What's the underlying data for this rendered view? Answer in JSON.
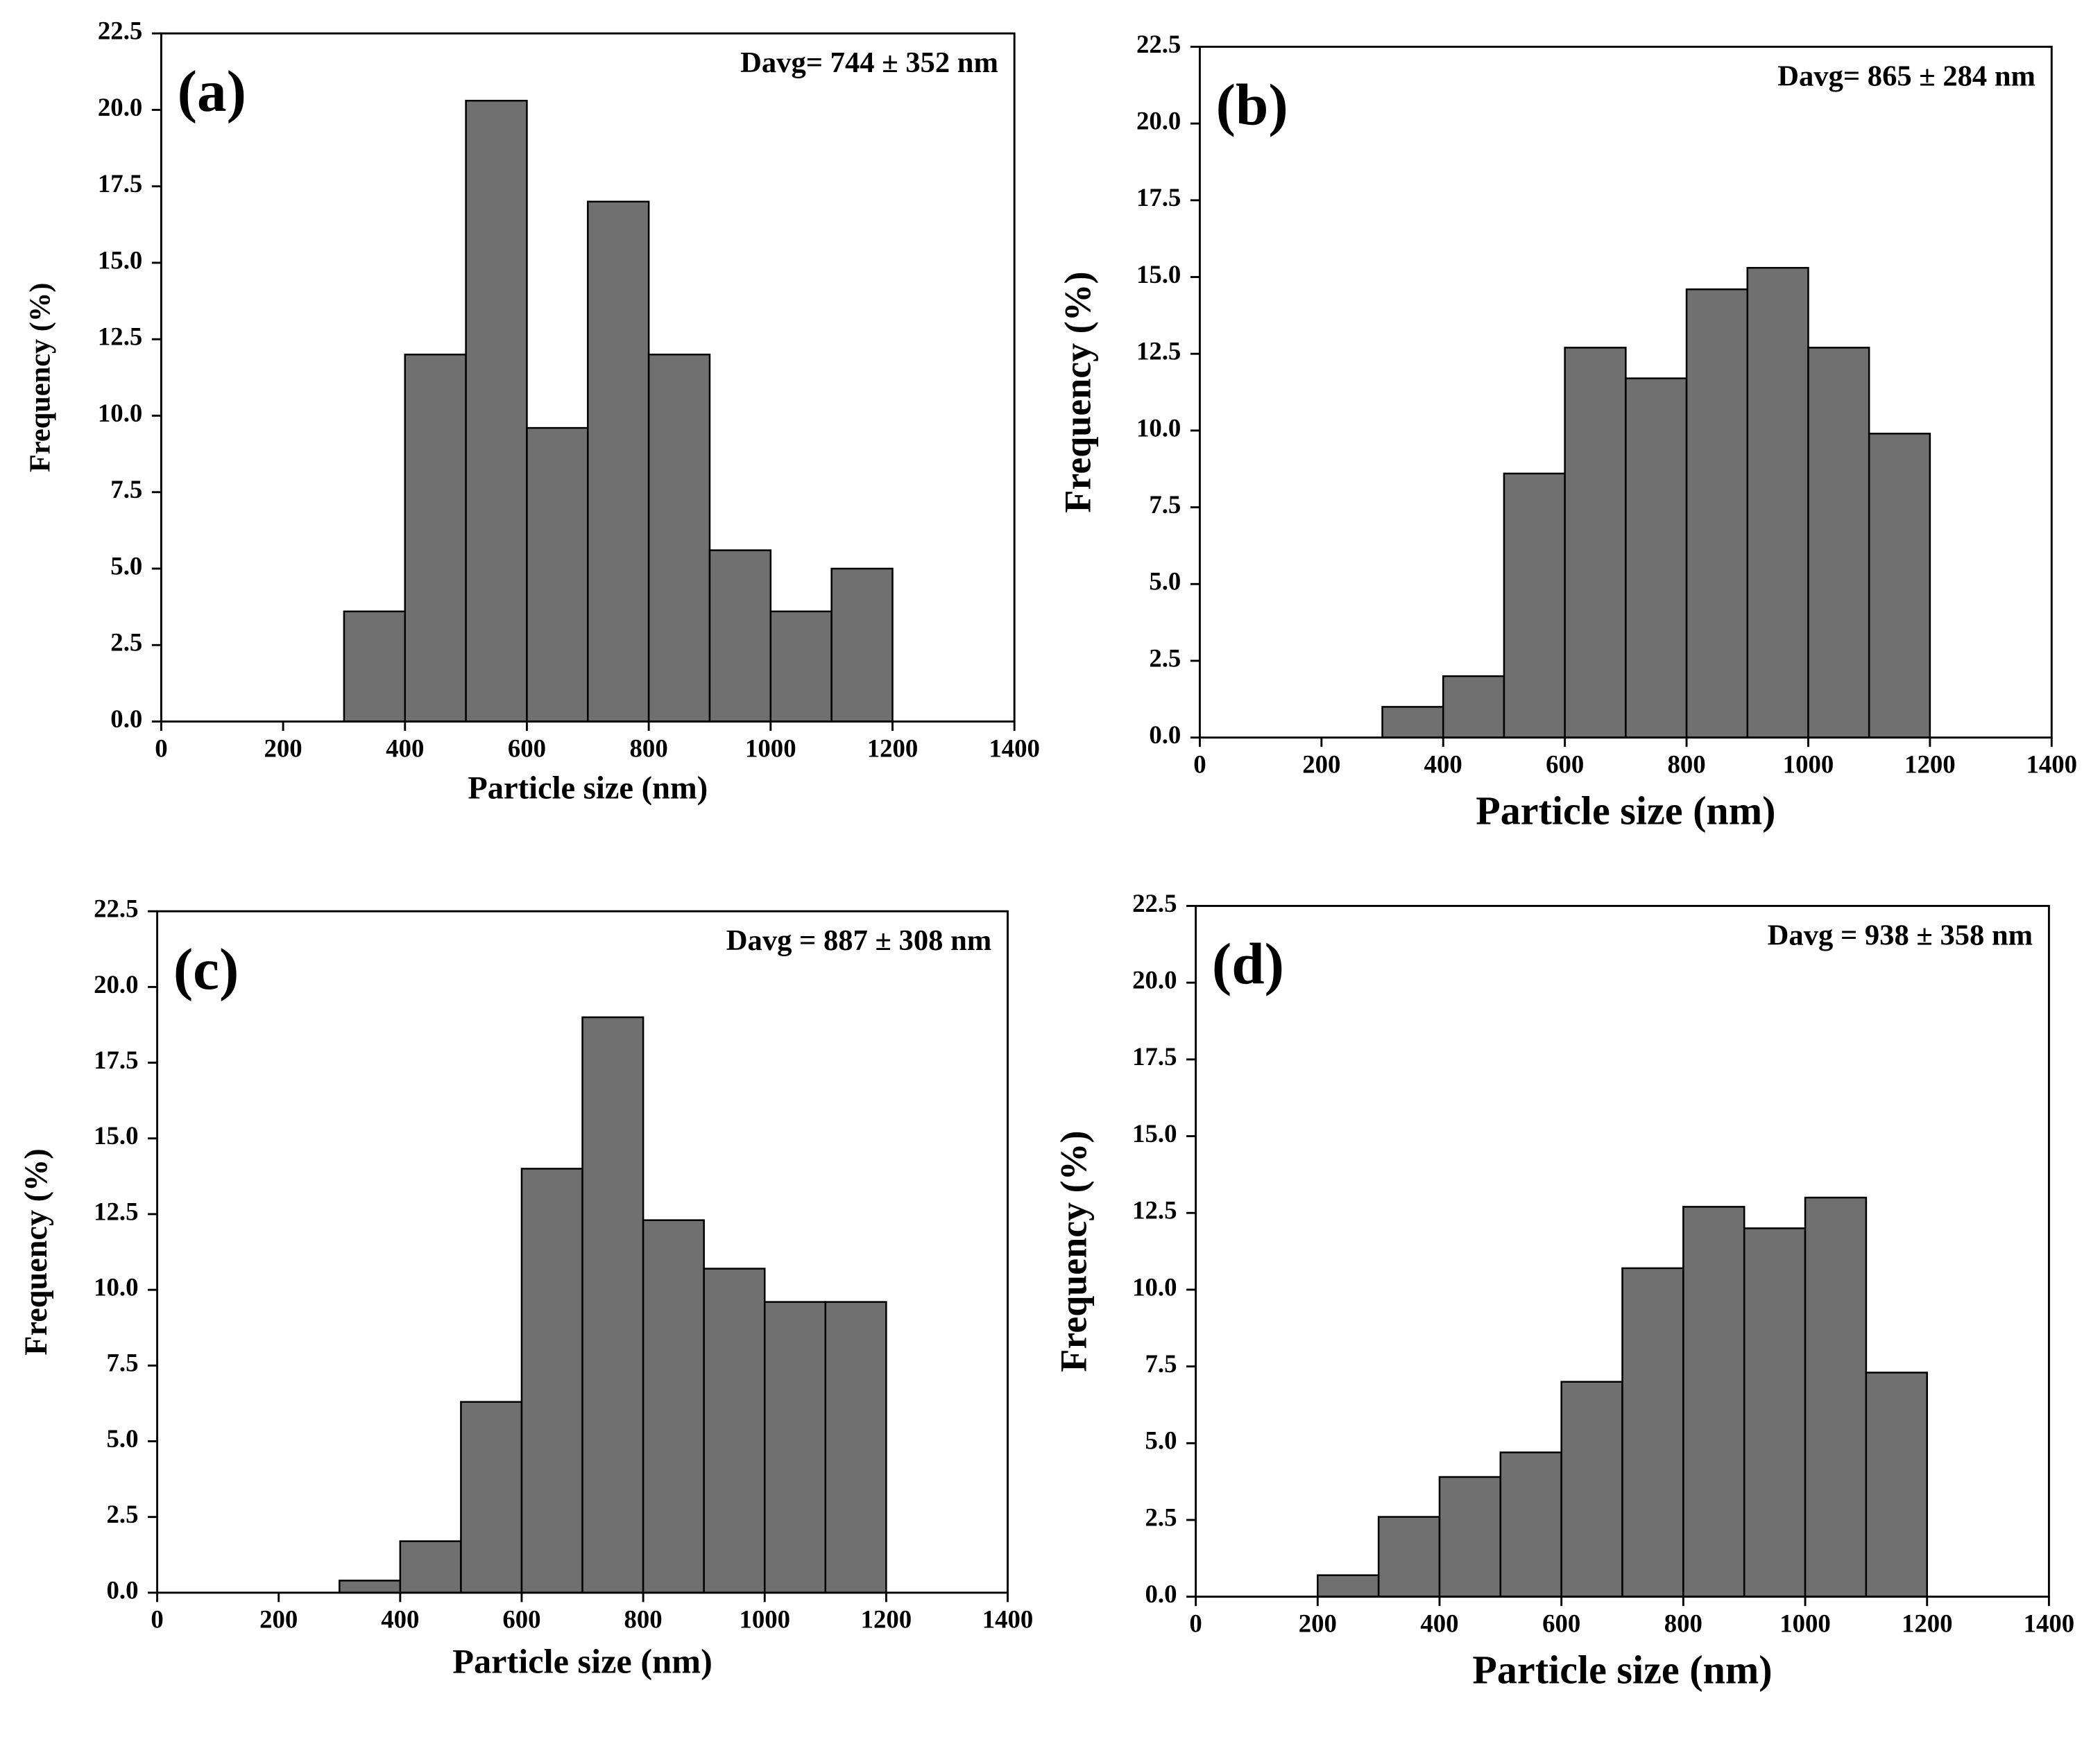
{
  "chart_data": [
    {
      "type": "histogram",
      "panel_label": "(a)",
      "annotation": "Davg= 744 ± 352 nm",
      "xlabel": "Particle size (nm)",
      "ylabel": "Frequency (%)",
      "bins": [
        300,
        400,
        500,
        600,
        700,
        800,
        900,
        1000,
        1100,
        1200
      ],
      "values": [
        3.6,
        12,
        20.3,
        9.6,
        17,
        12,
        5.6,
        3.6,
        5
      ],
      "color": "#707070",
      "xlim": [
        0,
        1400
      ],
      "xticks": [
        0,
        200,
        400,
        600,
        800,
        1000,
        1200,
        1400
      ],
      "ylim": [
        0,
        22.5
      ],
      "yticks": [
        {
          "value": 0,
          "label": "0.0"
        },
        2.5,
        {
          "value": 5,
          "label": "5.0"
        },
        7.5,
        {
          "value": 10,
          "label": "10.0"
        },
        12.5,
        {
          "value": 15,
          "label": "15.0"
        },
        17.5,
        {
          "value": 20,
          "label": "20.0"
        },
        22.5
      ]
    },
    {
      "type": "histogram",
      "panel_label": "(b)",
      "annotation": "Davg= 865 ± 284 nm",
      "xlabel": "Particle size (nm)",
      "ylabel": "Frequency (%)",
      "bins": [
        300,
        400,
        500,
        600,
        700,
        800,
        900,
        1000,
        1100,
        1200
      ],
      "values": [
        1,
        2,
        8.6,
        12.7,
        11.7,
        14.6,
        15.3,
        12.7,
        9.9
      ],
      "color": "#707070",
      "xlim": [
        0,
        1400
      ],
      "xticks": [
        0,
        200,
        400,
        600,
        800,
        1000,
        1200,
        1400
      ],
      "ylim": [
        0,
        22.5
      ],
      "yticks": [
        {
          "value": 0,
          "label": "0.0"
        },
        2.5,
        {
          "value": 5,
          "label": "5.0"
        },
        7.5,
        {
          "value": 10,
          "label": "10.0"
        },
        12.5,
        {
          "value": 15,
          "label": "15.0"
        },
        17.5,
        {
          "value": 20,
          "label": "20.0"
        },
        22.5
      ]
    },
    {
      "type": "histogram",
      "panel_label": "(c)",
      "annotation": "Davg = 887 ± 308 nm",
      "xlabel": "Particle size (nm)",
      "ylabel": "Frequency (%)",
      "bins": [
        300,
        400,
        500,
        600,
        700,
        800,
        900,
        1000,
        1100,
        1200
      ],
      "values": [
        0.4,
        1.7,
        6.3,
        14,
        19,
        12.3,
        10.7,
        9.6,
        9.6
      ],
      "color": "#707070",
      "xlim": [
        0,
        1400
      ],
      "xticks": [
        0,
        200,
        400,
        600,
        800,
        1000,
        1200,
        1400
      ],
      "ylim": [
        0,
        22.5
      ],
      "yticks": [
        {
          "value": 0,
          "label": "0.0"
        },
        2.5,
        {
          "value": 5,
          "label": "5.0"
        },
        7.5,
        {
          "value": 10,
          "label": "10.0"
        },
        12.5,
        {
          "value": 15,
          "label": "15.0"
        },
        17.5,
        {
          "value": 20,
          "label": "20.0"
        },
        22.5
      ]
    },
    {
      "type": "histogram",
      "panel_label": "(d)",
      "annotation": "Davg = 938 ± 358 nm",
      "xlabel": "Particle size (nm)",
      "ylabel": "Frequency (%)",
      "bins": [
        200,
        300,
        400,
        500,
        600,
        700,
        800,
        900,
        1000,
        1100,
        1200
      ],
      "values": [
        0.7,
        2.6,
        3.9,
        4.7,
        7,
        10.7,
        12.7,
        12,
        13,
        7.3
      ],
      "color": "#707070",
      "xlim": [
        0,
        1400
      ],
      "xticks": [
        0,
        200,
        400,
        600,
        800,
        1000,
        1200,
        1400
      ],
      "ylim": [
        0,
        22.5
      ],
      "yticks": [
        {
          "value": 0,
          "label": "0.0"
        },
        2.5,
        {
          "value": 5,
          "label": "5.0"
        },
        7.5,
        {
          "value": 10,
          "label": "10.0"
        },
        12.5,
        {
          "value": 15,
          "label": "15.0"
        },
        17.5,
        {
          "value": 20,
          "label": "20.0"
        },
        22.5
      ]
    }
  ]
}
